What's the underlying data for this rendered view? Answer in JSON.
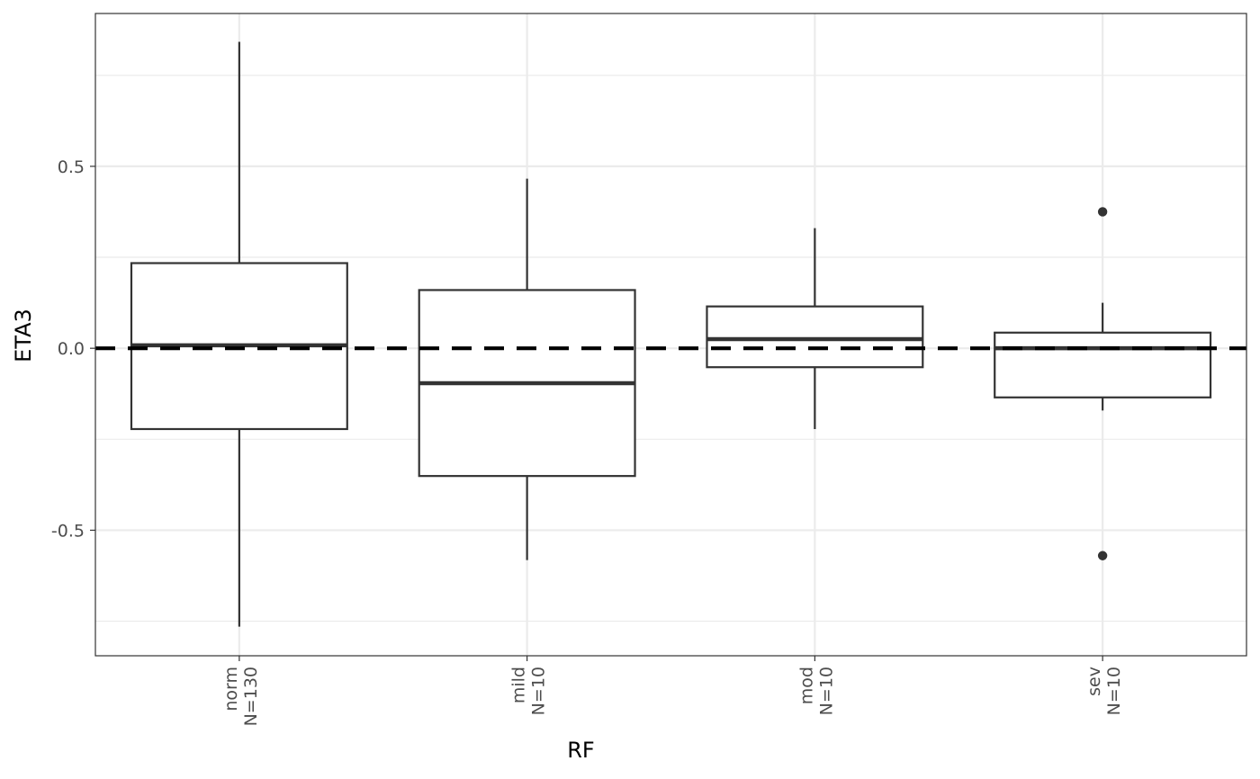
{
  "chart_data": {
    "type": "box",
    "xlabel": "RF",
    "ylabel": "ETA3",
    "ylim": [
      -0.845,
      0.92
    ],
    "y_ticks": [
      {
        "value": 0.5,
        "label": "0.5"
      },
      {
        "value": 0.0,
        "label": "0.0"
      },
      {
        "value": -0.5,
        "label": "-0.5"
      }
    ],
    "y_minor_grid": [
      0.75,
      0.25,
      -0.25,
      -0.75
    ],
    "categories": [
      {
        "label": "norm",
        "n_label": "N=130"
      },
      {
        "label": "mild",
        "n_label": "N=10"
      },
      {
        "label": "mod",
        "n_label": "N=10"
      },
      {
        "label": "sev",
        "n_label": "N=10"
      }
    ],
    "boxes": [
      {
        "category": "norm",
        "whisker_low": -0.765,
        "q1": -0.222,
        "median": 0.008,
        "q3": 0.234,
        "whisker_high": 0.842,
        "outliers": []
      },
      {
        "category": "mild",
        "whisker_low": -0.582,
        "q1": -0.351,
        "median": -0.096,
        "q3": 0.16,
        "whisker_high": 0.466,
        "outliers": []
      },
      {
        "category": "mod",
        "whisker_low": -0.222,
        "q1": -0.052,
        "median": 0.025,
        "q3": 0.115,
        "whisker_high": 0.33,
        "outliers": []
      },
      {
        "category": "sev",
        "whisker_low": -0.171,
        "q1": -0.135,
        "median": 0.0,
        "q3": 0.043,
        "whisker_high": 0.125,
        "outliers": [
          0.375,
          -0.57
        ]
      }
    ],
    "reference_line": {
      "y": 0.0,
      "style": "dashed",
      "color": "#000000"
    },
    "grid": true,
    "legend": "none",
    "colors": {
      "box_stroke": "#333333",
      "grid": "#ebebeb",
      "panel_border": "#333333",
      "background": "#ffffff"
    }
  }
}
